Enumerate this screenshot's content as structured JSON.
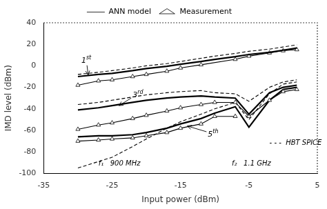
{
  "chart_data": {
    "type": "line",
    "xlabel": "Input power (dBm)",
    "ylabel": "IMD level (dBm)",
    "xlim": [
      -35,
      5
    ],
    "ylim": [
      -100,
      40
    ],
    "xticks": [
      -35,
      -25,
      -15,
      -5,
      5
    ],
    "yticks": [
      -100,
      -80,
      -60,
      -40,
      -20,
      0,
      20,
      40
    ],
    "grid": false,
    "legend": "top",
    "series": [
      {
        "name": "ANN model",
        "color": "#000000",
        "marker": "none",
        "line_style": "solid",
        "x": [
          -30,
          -27,
          -25,
          -22,
          -20,
          -17,
          -15,
          -12,
          -10,
          -7,
          -5,
          -2,
          0,
          2
        ],
        "values": [
          -10,
          -8,
          -7,
          -4.5,
          -2.5,
          -0.5,
          1.5,
          4,
          6,
          8.5,
          10.5,
          12.5,
          14.5,
          16.5
        ]
      },
      {
        "name": "Measurement",
        "color": "#000000",
        "marker": "triangle",
        "line_style": "solid",
        "x": [
          -30,
          -27,
          -25,
          -22,
          -20,
          -17,
          -15,
          -12,
          -7,
          -5,
          -2,
          0,
          2
        ],
        "values": [
          -18,
          -14,
          -13,
          -10,
          -8,
          -5,
          -2,
          1,
          6,
          9,
          12,
          14,
          15
        ]
      },
      {
        "color": "#000000",
        "marker": "none",
        "line_style": "dashed",
        "x": [
          -30,
          -27,
          -25,
          -22,
          -20,
          -17,
          -15,
          -12,
          -10,
          -7,
          -5,
          -2,
          0,
          2
        ],
        "values": [
          -8,
          -6,
          -4.5,
          -2,
          0,
          2,
          4,
          7,
          9,
          11.5,
          13.5,
          15.5,
          17.5,
          19.5
        ]
      },
      {
        "name": "ANN model",
        "color": "#000000",
        "marker": "none",
        "line_style": "solid",
        "x": [
          -30,
          -27,
          -25,
          -22,
          -20,
          -17,
          -15,
          -12,
          -10,
          -7,
          -5,
          -2,
          0,
          2
        ],
        "values": [
          -41,
          -39,
          -37,
          -34,
          -32,
          -30,
          -29,
          -28,
          -29,
          -30,
          -45,
          -25,
          -20,
          -18
        ]
      },
      {
        "name": "Measurement",
        "color": "#000000",
        "marker": "triangle",
        "line_style": "solid",
        "x": [
          -30,
          -27,
          -25,
          -22,
          -20,
          -17,
          -15,
          -12,
          -10,
          -7,
          -5,
          -2,
          0,
          2
        ],
        "values": [
          -59,
          -55,
          -53,
          -49,
          -46,
          -42,
          -39,
          -36,
          -34,
          -34,
          -47,
          -32,
          -24,
          -22
        ]
      },
      {
        "color": "#000000",
        "marker": "none",
        "line_style": "dashed",
        "x": [
          -30,
          -27,
          -25,
          -22,
          -20,
          -17,
          -15,
          -12,
          -10,
          -7,
          -5,
          -2,
          0,
          2
        ],
        "values": [
          -36,
          -34,
          -32,
          -29,
          -27,
          -25,
          -24,
          -23,
          -25,
          -26,
          -33,
          -20,
          -15,
          -13
        ]
      },
      {
        "name": "ANN model",
        "color": "#000000",
        "marker": "none",
        "line_style": "solid",
        "x": [
          -30,
          -27,
          -25,
          -22,
          -20,
          -17,
          -15,
          -12,
          -10,
          -7,
          -5,
          -2,
          0,
          2
        ],
        "values": [
          -66,
          -65,
          -65,
          -64,
          -62,
          -58,
          -54,
          -49,
          -44,
          -38,
          -57,
          -32,
          -22,
          -20
        ]
      },
      {
        "name": "Measurement",
        "color": "#000000",
        "marker": "triangle",
        "line_style": "solid",
        "x": [
          -30,
          -27,
          -25,
          -22,
          -20,
          -17,
          -15,
          -12,
          -10,
          -7
        ],
        "values": [
          -70,
          -69,
          -68,
          -67,
          -65,
          -62,
          -58,
          -54,
          -47,
          -47
        ]
      },
      {
        "color": "#000000",
        "marker": "none",
        "line_style": "dashed",
        "x": [
          -30,
          -25,
          -22,
          -20,
          -17,
          -15,
          -12,
          -10,
          -7,
          -5,
          -2,
          0,
          2
        ],
        "values": [
          -95,
          -85,
          -75,
          -68,
          -58,
          -52,
          -45,
          -40,
          -34,
          -50,
          -26,
          -17,
          -15
        ]
      }
    ],
    "annotations": [
      {
        "text": "1st",
        "x": -29.5,
        "y": 3,
        "xy": [
          -28.5,
          -8.5
        ]
      },
      {
        "text": "3rd",
        "x": -22,
        "y": -29,
        "xy": [
          -24,
          -37
        ]
      },
      {
        "text": "5th",
        "x": -11,
        "y": -66,
        "xy": [
          -14,
          -56
        ]
      }
    ],
    "texts": [
      {
        "text": "- - -  HBT SPICE",
        "x": -2,
        "y": -72
      },
      {
        "text": "f₁   900 MHz",
        "x": -27,
        "y": -91
      },
      {
        "text": "f₂   1.1 GHz",
        "x": -7.5,
        "y": -91
      }
    ]
  }
}
